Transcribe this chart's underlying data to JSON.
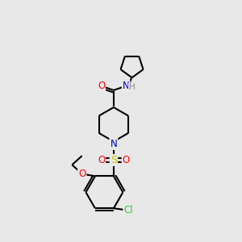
{
  "bg_color": "#e8e8e8",
  "bond_color": "#000000",
  "line_width": 1.5,
  "atom_colors": {
    "O": "#ff0000",
    "N": "#0000cc",
    "S": "#cccc00",
    "Cl": "#33cc33",
    "C": "#000000",
    "H": "#888888"
  },
  "font_size": 8.5
}
